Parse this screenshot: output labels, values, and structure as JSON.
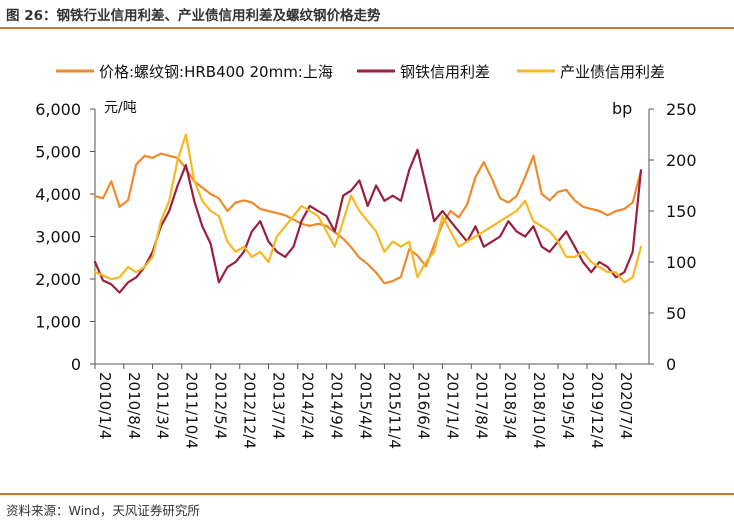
{
  "figure": {
    "title": "图 26：钢铁行业信用利差、产业债信用利差及螺纹钢价格走势",
    "source": "资料来源：Wind，天风证券研究所"
  },
  "chart_data": {
    "type": "line",
    "left_axis": {
      "unit": "元/吨",
      "ticks": [
        "0",
        "1,000",
        "2,000",
        "3,000",
        "4,000",
        "5,000",
        "6,000"
      ],
      "range": [
        0,
        6000
      ]
    },
    "right_axis": {
      "unit": "bp",
      "ticks": [
        "0",
        "50",
        "100",
        "150",
        "200",
        "250"
      ],
      "range": [
        0,
        250
      ]
    },
    "x_ticks": [
      "2010/1/4",
      "2010/8/4",
      "2011/3/4",
      "2011/10/4",
      "2012/5/4",
      "2012/12/4",
      "2013/7/4",
      "2014/2/4",
      "2014/9/4",
      "2015/4/4",
      "2015/11/4",
      "2016/6/4",
      "2017/1/4",
      "2017/8/4",
      "2018/3/4",
      "2018/10/4",
      "2019/5/4",
      "2019/12/4",
      "2020/7/4"
    ],
    "x_range": [
      "2010/1/4",
      "2021/3/4"
    ],
    "grid": false,
    "legend_position": "top",
    "series": [
      {
        "name": "价格:螺纹钢:HRB400 20mm:上海",
        "axis": "left",
        "color": "#ef8a2c",
        "x": [
          "2010/1/4",
          "2010/3/4",
          "2010/5/4",
          "2010/7/4",
          "2010/9/4",
          "2010/11/4",
          "2011/1/4",
          "2011/3/4",
          "2011/5/4",
          "2011/7/4",
          "2011/9/4",
          "2011/11/4",
          "2012/1/4",
          "2012/3/4",
          "2012/5/4",
          "2012/7/4",
          "2012/9/4",
          "2012/11/4",
          "2013/1/4",
          "2013/3/4",
          "2013/5/4",
          "2013/7/4",
          "2013/9/4",
          "2013/11/4",
          "2014/1/4",
          "2014/3/4",
          "2014/5/4",
          "2014/7/4",
          "2014/9/4",
          "2014/11/4",
          "2015/1/4",
          "2015/3/4",
          "2015/5/4",
          "2015/7/4",
          "2015/9/4",
          "2015/11/4",
          "2016/1/4",
          "2016/3/4",
          "2016/5/4",
          "2016/7/4",
          "2016/9/4",
          "2016/11/4",
          "2017/1/4",
          "2017/3/4",
          "2017/5/4",
          "2017/7/4",
          "2017/9/4",
          "2017/11/4",
          "2018/1/4",
          "2018/3/4",
          "2018/5/4",
          "2018/7/4",
          "2018/9/4",
          "2018/11/4",
          "2019/1/4",
          "2019/3/4",
          "2019/5/4",
          "2019/7/4",
          "2019/9/4",
          "2019/11/4",
          "2020/1/4",
          "2020/3/4",
          "2020/5/4",
          "2020/7/4",
          "2020/9/4",
          "2020/11/4",
          "2021/1/4"
        ],
        "y": [
          3950,
          3900,
          4300,
          3700,
          3850,
          4700,
          4900,
          4850,
          4950,
          4900,
          4850,
          4600,
          4300,
          4150,
          4000,
          3900,
          3600,
          3800,
          3850,
          3800,
          3650,
          3600,
          3550,
          3500,
          3400,
          3300,
          3250,
          3300,
          3250,
          3100,
          2950,
          2750,
          2500,
          2350,
          2150,
          1900,
          1950,
          2050,
          2700,
          2550,
          2300,
          2800,
          3300,
          3600,
          3450,
          3750,
          4400,
          4750,
          4350,
          3900,
          3800,
          3950,
          4400,
          4900,
          4000,
          3850,
          4050,
          4100,
          3850,
          3700,
          3650,
          3600,
          3500,
          3600,
          3650,
          3800,
          4550
        ]
      },
      {
        "name": "钢铁信用利差",
        "axis": "right",
        "color": "#9b1f3f",
        "x": [
          "2010/1/4",
          "2010/3/4",
          "2010/5/4",
          "2010/7/4",
          "2010/9/4",
          "2010/11/4",
          "2011/1/4",
          "2011/3/4",
          "2011/5/4",
          "2011/7/4",
          "2011/9/4",
          "2011/11/4",
          "2012/1/4",
          "2012/3/4",
          "2012/5/4",
          "2012/7/4",
          "2012/9/4",
          "2012/11/4",
          "2013/1/4",
          "2013/3/4",
          "2013/5/4",
          "2013/7/4",
          "2013/9/4",
          "2013/11/4",
          "2014/1/4",
          "2014/3/4",
          "2014/5/4",
          "2014/7/4",
          "2014/9/4",
          "2014/11/4",
          "2015/1/4",
          "2015/3/4",
          "2015/5/4",
          "2015/7/4",
          "2015/9/4",
          "2015/11/4",
          "2016/1/4",
          "2016/3/4",
          "2016/5/4",
          "2016/7/4",
          "2016/9/4",
          "2016/11/4",
          "2017/1/4",
          "2017/3/4",
          "2017/5/4",
          "2017/7/4",
          "2017/9/4",
          "2017/11/4",
          "2018/1/4",
          "2018/3/4",
          "2018/5/4",
          "2018/7/4",
          "2018/9/4",
          "2018/11/4",
          "2019/1/4",
          "2019/3/4",
          "2019/5/4",
          "2019/7/4",
          "2019/9/4",
          "2019/11/4",
          "2020/1/4",
          "2020/3/4",
          "2020/5/4",
          "2020/7/4",
          "2020/9/4",
          "2020/11/4",
          "2021/1/4"
        ],
        "y": [
          100,
          82,
          78,
          70,
          80,
          85,
          95,
          110,
          135,
          150,
          175,
          195,
          160,
          135,
          118,
          80,
          95,
          100,
          110,
          130,
          140,
          120,
          110,
          105,
          115,
          140,
          155,
          150,
          145,
          130,
          165,
          170,
          180,
          155,
          175,
          160,
          165,
          160,
          190,
          210,
          175,
          140,
          150,
          140,
          130,
          120,
          135,
          115,
          120,
          125,
          140,
          130,
          125,
          135,
          115,
          110,
          120,
          130,
          115,
          100,
          90,
          100,
          95,
          85,
          90,
          110,
          190
        ]
      },
      {
        "name": "产业债信用利差",
        "axis": "right",
        "color": "#f7b824",
        "x": [
          "2010/1/4",
          "2010/3/4",
          "2010/5/4",
          "2010/7/4",
          "2010/9/4",
          "2010/11/4",
          "2011/1/4",
          "2011/3/4",
          "2011/5/4",
          "2011/7/4",
          "2011/9/4",
          "2011/11/4",
          "2012/1/4",
          "2012/3/4",
          "2012/5/4",
          "2012/7/4",
          "2012/9/4",
          "2012/11/4",
          "2013/1/4",
          "2013/3/4",
          "2013/5/4",
          "2013/7/4",
          "2013/9/4",
          "2013/11/4",
          "2014/1/4",
          "2014/3/4",
          "2014/5/4",
          "2014/7/4",
          "2014/9/4",
          "2014/11/4",
          "2015/1/4",
          "2015/3/4",
          "2015/5/4",
          "2015/7/4",
          "2015/9/4",
          "2015/11/4",
          "2016/1/4",
          "2016/3/4",
          "2016/5/4",
          "2016/7/4",
          "2016/9/4",
          "2016/11/4",
          "2017/1/4",
          "2017/3/4",
          "2017/5/4",
          "2017/7/4",
          "2017/9/4",
          "2017/11/4",
          "2018/1/4",
          "2018/3/4",
          "2018/5/4",
          "2018/7/4",
          "2018/9/4",
          "2018/11/4",
          "2019/1/4",
          "2019/3/4",
          "2019/5/4",
          "2019/7/4",
          "2019/9/4",
          "2019/11/4",
          "2020/1/4",
          "2020/3/4",
          "2020/5/4",
          "2020/7/4",
          "2020/9/4",
          "2020/11/4",
          "2021/1/4"
        ],
        "y": [
          90,
          87,
          83,
          85,
          95,
          90,
          95,
          105,
          140,
          160,
          200,
          225,
          180,
          160,
          150,
          145,
          120,
          110,
          115,
          105,
          110,
          100,
          125,
          135,
          145,
          155,
          150,
          145,
          130,
          115,
          140,
          165,
          150,
          140,
          130,
          110,
          120,
          115,
          120,
          85,
          100,
          110,
          145,
          130,
          115,
          120,
          125,
          130,
          135,
          140,
          145,
          150,
          160,
          140,
          135,
          130,
          120,
          105,
          105,
          110,
          100,
          95,
          90,
          90,
          80,
          85,
          115
        ]
      }
    ]
  }
}
